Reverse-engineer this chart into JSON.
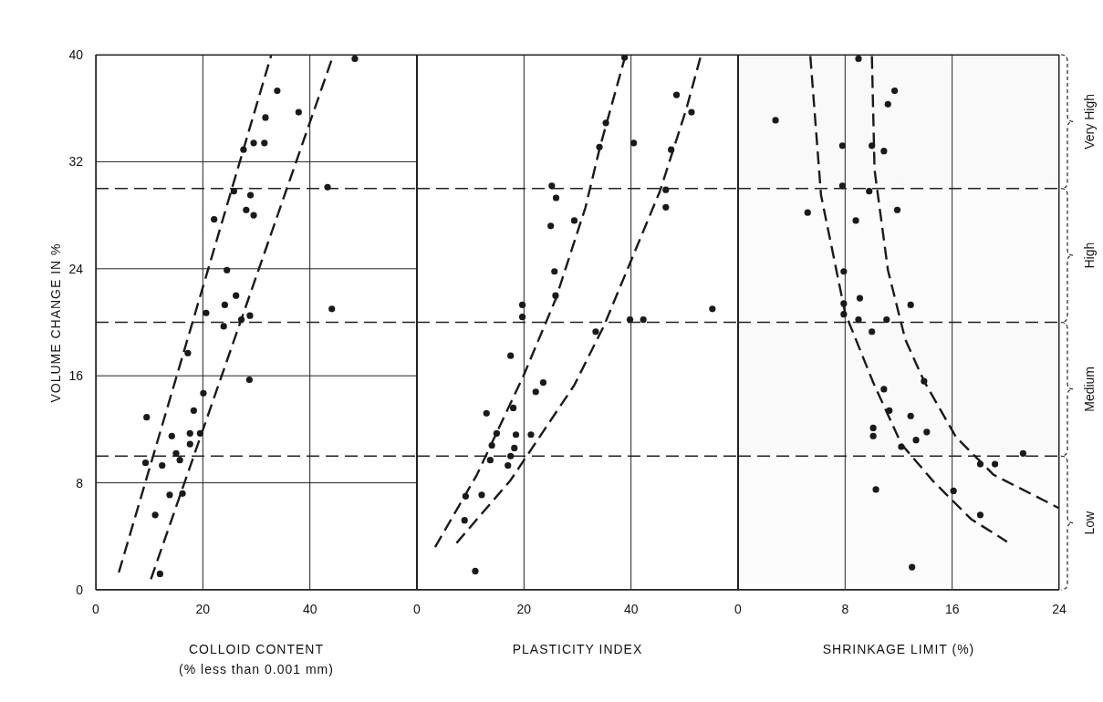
{
  "chart_data": [
    {
      "type": "scatter",
      "xlabel": "COLLOID CONTENT\n(% less than 0.001 mm)",
      "ylabel": "VOLUME CHANGE IN %",
      "xlim": [
        0,
        60
      ],
      "xticks": [
        0,
        20,
        40
      ],
      "ylim": [
        0,
        40
      ],
      "yticks": [
        0,
        8,
        16,
        24,
        32,
        40
      ],
      "grid": true,
      "ref_lines": [
        {
          "axis": "y",
          "value": 10,
          "line_style": "dashed"
        },
        {
          "axis": "y",
          "value": 20,
          "line_style": "dashed"
        },
        {
          "axis": "y",
          "value": 30,
          "line_style": "dashed"
        }
      ],
      "series": [
        {
          "type": "scatter",
          "color": "#1a1a1a",
          "marker": "circle",
          "x": [
            48.4,
            33.9,
            37.9,
            31.7,
            29.5,
            31.5,
            27.6,
            43.3,
            25.8,
            28.9,
            28.1,
            29.5,
            22.1,
            24.5,
            26.2,
            24.1,
            44.1,
            20.6,
            28.8,
            27.2,
            23.9,
            17.2,
            28.7,
            20.1,
            9.5,
            18.3,
            14.2,
            17.6,
            19.5,
            17.6,
            15.0,
            15.7,
            9.3,
            12.4,
            13.8,
            16.2,
            11.1,
            12.0
          ],
          "values": [
            39.7,
            37.3,
            35.7,
            35.3,
            33.4,
            33.4,
            32.9,
            30.1,
            29.8,
            29.5,
            28.4,
            28.0,
            27.7,
            23.9,
            22.0,
            21.3,
            21.0,
            20.7,
            20.5,
            20.2,
            19.7,
            17.7,
            15.7,
            14.7,
            12.9,
            13.4,
            11.5,
            11.7,
            11.7,
            10.9,
            10.2,
            9.7,
            9.5,
            9.3,
            7.1,
            7.2,
            5.6,
            1.2
          ]
        },
        {
          "type": "line",
          "color": "#1a1a1a",
          "line_style": "dashed",
          "x": [
            4.3,
            32.8
          ],
          "values": [
            1.3,
            40
          ]
        },
        {
          "type": "line",
          "color": "#1a1a1a",
          "line_style": "dashed",
          "x": [
            10.3,
            44.4
          ],
          "values": [
            0.8,
            40
          ]
        }
      ]
    },
    {
      "type": "scatter",
      "xlabel": "PLASTICITY INDEX",
      "xlim": [
        0,
        60
      ],
      "xticks": [
        0,
        20,
        40
      ],
      "ylim": [
        0,
        40
      ],
      "yticks": [
        0,
        8,
        16,
        24,
        32,
        40
      ],
      "grid": true,
      "tick_labels": "x",
      "ref_lines": [
        {
          "axis": "y",
          "value": 10,
          "line_style": "dashed"
        },
        {
          "axis": "y",
          "value": 20,
          "line_style": "dashed"
        },
        {
          "axis": "y",
          "value": 30,
          "line_style": "dashed"
        }
      ],
      "series": [
        {
          "type": "scatter",
          "color": "#1a1a1a",
          "marker": "circle",
          "x": [
            38.8,
            35.3,
            34.1,
            48.5,
            51.3,
            40.5,
            47.5,
            25.2,
            26.0,
            46.5,
            46.5,
            29.4,
            25.0,
            25.7,
            25.9,
            19.7,
            19.7,
            39.8,
            42.3,
            55.2,
            33.4,
            17.5,
            23.6,
            22.2,
            13.0,
            18.0,
            14.9,
            18.5,
            21.3,
            14.0,
            18.2,
            17.5,
            13.7,
            17.0,
            9.1,
            12.1,
            8.9,
            10.9
          ],
          "values": [
            39.8,
            34.9,
            33.1,
            37.0,
            35.7,
            33.4,
            32.9,
            30.2,
            29.3,
            29.9,
            28.6,
            27.6,
            27.2,
            23.8,
            22.0,
            21.3,
            20.4,
            20.2,
            20.2,
            21.0,
            19.3,
            17.5,
            15.5,
            14.8,
            13.2,
            13.6,
            11.7,
            11.6,
            11.6,
            10.8,
            10.6,
            10.0,
            9.7,
            9.3,
            7.0,
            7.1,
            5.2,
            1.4
          ]
        },
        {
          "type": "line",
          "color": "#1a1a1a",
          "line_style": "dashed",
          "x": [
            3.4,
            11.2,
            19.9,
            25.9,
            31.5,
            34.2,
            39.0
          ],
          "values": [
            3.2,
            8.6,
            16.0,
            21.7,
            28.6,
            33.1,
            40
          ]
        },
        {
          "type": "line",
          "color": "#1a1a1a",
          "line_style": "dashed",
          "x": [
            7.4,
            17.5,
            29.4,
            34.9,
            40.0,
            45.4,
            50.3,
            53.1
          ],
          "values": [
            3.5,
            8.2,
            15.3,
            19.7,
            24.6,
            29.8,
            35.9,
            40
          ]
        }
      ]
    },
    {
      "type": "scatter",
      "xlabel": "SHRINKAGE LIMIT (%)",
      "xlim": [
        0,
        24
      ],
      "xticks": [
        0,
        8,
        16,
        24
      ],
      "ylim": [
        0,
        40
      ],
      "yticks": [
        0,
        8,
        16,
        24,
        32,
        40
      ],
      "grid": true,
      "tick_labels": "x",
      "ref_lines": [
        {
          "axis": "y",
          "value": 10,
          "line_style": "dashed"
        },
        {
          "axis": "y",
          "value": 20,
          "line_style": "dashed"
        },
        {
          "axis": "y",
          "value": 30,
          "line_style": "dashed"
        }
      ],
      "bands": [
        {
          "axis": "y",
          "from": 0,
          "to": 10,
          "label": "Low"
        },
        {
          "axis": "y",
          "from": 10,
          "to": 20,
          "label": "Medium"
        },
        {
          "axis": "y",
          "from": 20,
          "to": 30,
          "label": "High"
        },
        {
          "axis": "y",
          "from": 30,
          "to": 40,
          "label": "Very High"
        }
      ],
      "series": [
        {
          "type": "scatter",
          "color": "#1a1a1a",
          "marker": "circle",
          "x": [
            9.0,
            2.8,
            11.7,
            11.2,
            7.8,
            10.0,
            10.9,
            7.8,
            9.8,
            5.2,
            11.9,
            8.8,
            7.9,
            7.9,
            9.1,
            12.9,
            7.9,
            9.0,
            11.1,
            10.0,
            13.9,
            10.9,
            11.3,
            12.9,
            10.1,
            10.1,
            14.1,
            13.3,
            12.2,
            10.3,
            16.1,
            18.1,
            18.1,
            19.2,
            13.0,
            21.3
          ],
          "values": [
            39.7,
            35.1,
            37.3,
            36.3,
            33.2,
            33.2,
            32.8,
            30.2,
            29.8,
            28.2,
            28.4,
            27.6,
            23.8,
            21.4,
            21.8,
            21.3,
            20.6,
            20.2,
            20.2,
            19.3,
            15.6,
            15.0,
            13.4,
            13.0,
            12.1,
            11.5,
            11.8,
            11.2,
            10.7,
            7.5,
            7.4,
            5.6,
            9.4,
            9.4,
            1.7,
            10.2
          ]
        },
        {
          "type": "line",
          "color": "#1a1a1a",
          "line_style": "dashed",
          "x": [
            5.4,
            6.2,
            8.0,
            10.1,
            12.2,
            14.6,
            17.4,
            20.1
          ],
          "values": [
            39.9,
            29.5,
            20.7,
            15.5,
            10.9,
            8.1,
            5.3,
            3.6
          ]
        },
        {
          "type": "line",
          "color": "#1a1a1a",
          "line_style": "dashed",
          "x": [
            10.0,
            10.2,
            11.2,
            12.5,
            13.9,
            16.3,
            19.1,
            24.0
          ],
          "values": [
            39.9,
            31.4,
            23.9,
            18.7,
            15.6,
            11.4,
            8.6,
            6.1
          ]
        }
      ]
    }
  ]
}
